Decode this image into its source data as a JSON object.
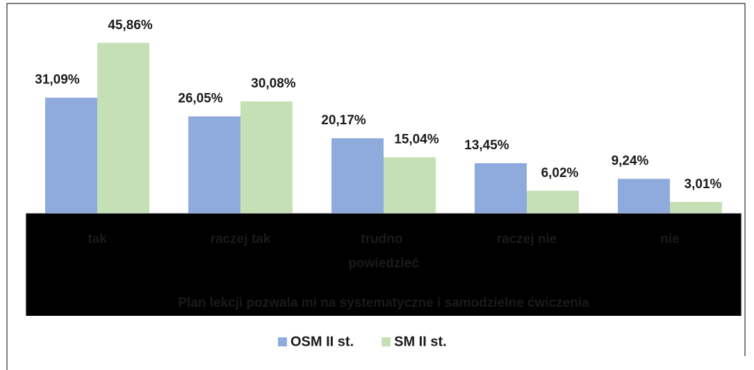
{
  "chart_data": {
    "type": "bar",
    "categories": [
      "tak",
      "raczej tak",
      "trudno powiedzieć",
      "raczej nie",
      "nie"
    ],
    "series": [
      {
        "name": "OSM II st.",
        "color": "#8faadc",
        "values": [
          31.09,
          26.05,
          20.17,
          13.45,
          9.24
        ],
        "value_labels": [
          "31,09%",
          "26,05%",
          "20,17%",
          "13,45%",
          "9,24%"
        ]
      },
      {
        "name": "SM II st.",
        "color": "#c5e0b4",
        "values": [
          45.86,
          30.08,
          15.04,
          6.02,
          3.01
        ],
        "value_labels": [
          "45,86%",
          "30,08%",
          "15,04%",
          "6,02%",
          "3,01%"
        ]
      }
    ],
    "x_label": "Plan lekcji pozwala mi na systematyczne i samodzielne ćwiczenia",
    "ylim": [
      0,
      54.6
    ],
    "legend": "bottom"
  }
}
